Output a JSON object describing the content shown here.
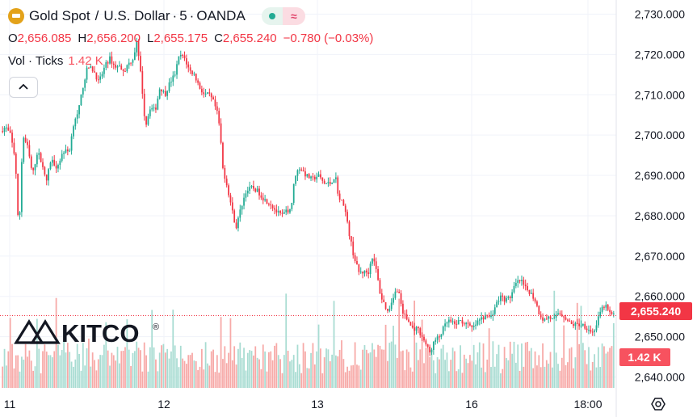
{
  "header": {
    "symbol": "Gold Spot",
    "currency": "U.S. Dollar",
    "interval": "5",
    "source": "OANDA",
    "separator_slash": "/",
    "separator_dot": "·",
    "icons": [
      "gold-coin-icon",
      "market-open-dot-icon",
      "wave-icon"
    ]
  },
  "ohlc": {
    "o_key": "O",
    "o_val": "2,656.085",
    "h_key": "H",
    "h_val": "2,656.200",
    "l_key": "L",
    "l_val": "2,655.175",
    "c_key": "C",
    "c_val": "2,655.240",
    "change": "−0.780 (−0.03%)"
  },
  "volume": {
    "label": "Vol · Ticks",
    "value": "1.42 K"
  },
  "watermark": {
    "text": "KITCO",
    "mark": "®"
  },
  "colors": {
    "up": "#22ab94",
    "down": "#f23645",
    "vol_up": "#a8dcd2",
    "vol_down": "#f7a9a7",
    "grid": "#f0f3fa",
    "price_line": "#f23645"
  },
  "chart_data": {
    "type": "candlestick",
    "symbol": "Gold Spot / U.S. Dollar",
    "interval_minutes": 5,
    "x_tick_labels": [
      "11",
      "12",
      "13",
      "16",
      "18:00"
    ],
    "y_tick_labels": [
      "2,730.000",
      "2,720.000",
      "2,710.000",
      "2,700.000",
      "2,690.000",
      "2,680.000",
      "2,670.000",
      "2,660.000",
      "2,650.000",
      "2,640.000"
    ],
    "y_ticks": [
      2730,
      2720,
      2710,
      2700,
      2690,
      2680,
      2670,
      2660,
      2650,
      2640
    ],
    "ylim": [
      2637.3,
      2733.5
    ],
    "last_price": 2655.24,
    "last_price_label": "2,655.240",
    "last_volume_label": "1.42 K",
    "grid": true,
    "close_path": [
      [
        0.0,
        2701
      ],
      [
        0.008,
        2702
      ],
      [
        0.016,
        2700
      ],
      [
        0.024,
        2694
      ],
      [
        0.028,
        2680
      ],
      [
        0.03,
        2676
      ],
      [
        0.036,
        2700
      ],
      [
        0.044,
        2697
      ],
      [
        0.052,
        2690
      ],
      [
        0.06,
        2696
      ],
      [
        0.068,
        2693
      ],
      [
        0.074,
        2688
      ],
      [
        0.082,
        2694
      ],
      [
        0.092,
        2692
      ],
      [
        0.102,
        2696
      ],
      [
        0.112,
        2696
      ],
      [
        0.12,
        2704
      ],
      [
        0.126,
        2705
      ],
      [
        0.134,
        2712
      ],
      [
        0.142,
        2717
      ],
      [
        0.152,
        2716
      ],
      [
        0.16,
        2713
      ],
      [
        0.17,
        2717
      ],
      [
        0.178,
        2719
      ],
      [
        0.186,
        2717
      ],
      [
        0.194,
        2717
      ],
      [
        0.202,
        2716
      ],
      [
        0.21,
        2718
      ],
      [
        0.216,
        2719
      ],
      [
        0.222,
        2723
      ],
      [
        0.23,
        2713
      ],
      [
        0.236,
        2702
      ],
      [
        0.244,
        2707
      ],
      [
        0.252,
        2706
      ],
      [
        0.26,
        2712
      ],
      [
        0.268,
        2710
      ],
      [
        0.276,
        2713
      ],
      [
        0.284,
        2715
      ],
      [
        0.292,
        2720
      ],
      [
        0.3,
        2719
      ],
      [
        0.308,
        2716
      ],
      [
        0.316,
        2715
      ],
      [
        0.324,
        2712
      ],
      [
        0.332,
        2710
      ],
      [
        0.34,
        2710
      ],
      [
        0.348,
        2708
      ],
      [
        0.354,
        2705
      ],
      [
        0.358,
        2701
      ],
      [
        0.362,
        2692
      ],
      [
        0.37,
        2687
      ],
      [
        0.378,
        2681
      ],
      [
        0.384,
        2677
      ],
      [
        0.392,
        2682
      ],
      [
        0.4,
        2686
      ],
      [
        0.41,
        2687
      ],
      [
        0.42,
        2686
      ],
      [
        0.43,
        2684
      ],
      [
        0.44,
        2683
      ],
      [
        0.45,
        2681
      ],
      [
        0.458,
        2680
      ],
      [
        0.466,
        2681
      ],
      [
        0.474,
        2682
      ],
      [
        0.48,
        2690
      ],
      [
        0.488,
        2692
      ],
      [
        0.498,
        2690
      ],
      [
        0.508,
        2689
      ],
      [
        0.518,
        2690
      ],
      [
        0.528,
        2688
      ],
      [
        0.538,
        2688
      ],
      [
        0.546,
        2690
      ],
      [
        0.552,
        2684
      ],
      [
        0.56,
        2683
      ],
      [
        0.568,
        2676
      ],
      [
        0.576,
        2670
      ],
      [
        0.584,
        2666
      ],
      [
        0.592,
        2666
      ],
      [
        0.6,
        2666
      ],
      [
        0.606,
        2670
      ],
      [
        0.612,
        2667
      ],
      [
        0.62,
        2660
      ],
      [
        0.626,
        2658
      ],
      [
        0.632,
        2656
      ],
      [
        0.64,
        2660
      ],
      [
        0.648,
        2662
      ],
      [
        0.656,
        2656
      ],
      [
        0.664,
        2654
      ],
      [
        0.672,
        2652
      ],
      [
        0.68,
        2652
      ],
      [
        0.688,
        2650
      ],
      [
        0.694,
        2648
      ],
      [
        0.7,
        2646
      ],
      [
        0.708,
        2649
      ],
      [
        0.716,
        2650
      ],
      [
        0.722,
        2652
      ],
      [
        0.73,
        2654
      ],
      [
        0.74,
        2653
      ],
      [
        0.75,
        2654
      ],
      [
        0.76,
        2653
      ],
      [
        0.77,
        2652
      ],
      [
        0.78,
        2654
      ],
      [
        0.79,
        2655
      ],
      [
        0.8,
        2655
      ],
      [
        0.808,
        2658
      ],
      [
        0.816,
        2660
      ],
      [
        0.824,
        2659
      ],
      [
        0.832,
        2660
      ],
      [
        0.84,
        2663
      ],
      [
        0.848,
        2664
      ],
      [
        0.856,
        2662
      ],
      [
        0.864,
        2661
      ],
      [
        0.872,
        2659
      ],
      [
        0.878,
        2656
      ],
      [
        0.886,
        2654
      ],
      [
        0.894,
        2655
      ],
      [
        0.902,
        2654
      ],
      [
        0.91,
        2656
      ],
      [
        0.92,
        2655
      ],
      [
        0.93,
        2653
      ],
      [
        0.94,
        2653
      ],
      [
        0.95,
        2653
      ],
      [
        0.958,
        2652
      ],
      [
        0.966,
        2651
      ],
      [
        0.972,
        2653
      ],
      [
        0.978,
        2656
      ],
      [
        0.986,
        2658
      ],
      [
        0.992,
        2656
      ],
      [
        1.0,
        2655.24
      ]
    ]
  }
}
